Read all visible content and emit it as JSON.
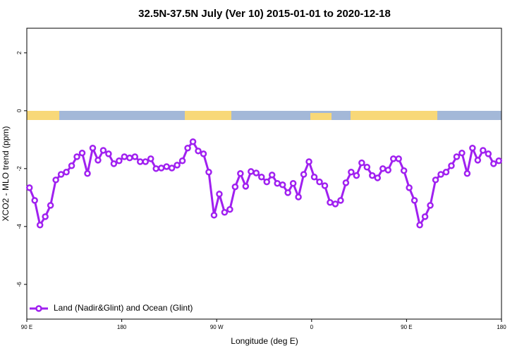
{
  "chart_data": {
    "type": "line",
    "title": "32.5N-37.5N July (Ver 10)   2015-01-01 to 2020-12-18",
    "xlabel": "Longitude (deg E)",
    "ylabel": "XCO2 - MLO trend (ppm)",
    "xlim": [
      90,
      540
    ],
    "ylim": [
      -7.2,
      2.85
    ],
    "xticks": [
      {
        "value": 90,
        "label": "90 E"
      },
      {
        "value": 180,
        "label": "180"
      },
      {
        "value": 270,
        "label": "90 W"
      },
      {
        "value": 360,
        "label": "0"
      },
      {
        "value": 450,
        "label": "90 E"
      },
      {
        "value": 540,
        "label": "180"
      }
    ],
    "yticks": [
      -6,
      -4,
      -2,
      0,
      2
    ],
    "legend": "bottom-left",
    "x": [
      92.5,
      97.5,
      102.5,
      107.5,
      112.5,
      117.5,
      122.5,
      127.5,
      132.5,
      137.5,
      142.5,
      147.5,
      152.5,
      157.5,
      162.5,
      167.5,
      172.5,
      177.5,
      182.5,
      187.5,
      192.5,
      197.5,
      202.5,
      207.5,
      212.5,
      217.5,
      222.5,
      227.5,
      232.5,
      237.5,
      242.5,
      247.5,
      252.5,
      257.5,
      262.5,
      267.5,
      272.5,
      277.5,
      282.5,
      287.5,
      292.5,
      297.5,
      302.5,
      307.5,
      312.5,
      317.5,
      322.5,
      327.5,
      332.5,
      337.5,
      342.5,
      347.5,
      352.5,
      357.5,
      362.5,
      367.5,
      372.5,
      377.5,
      382.5,
      387.5,
      392.5,
      397.5,
      402.5,
      407.5,
      412.5,
      417.5,
      422.5,
      427.5,
      432.5,
      437.5,
      442.5,
      447.5,
      452.5,
      457.5,
      462.5,
      467.5,
      472.5,
      477.5,
      482.5,
      487.5,
      492.5,
      497.5,
      502.5,
      507.5,
      512.5,
      517.5,
      522.5,
      527.5,
      532.5,
      537.5
    ],
    "series": [
      {
        "name": "Land (Nadir&Glint) and Ocean (Glint)",
        "color": "#a020f0",
        "values": [
          -2.66,
          -3.1,
          -3.95,
          -3.66,
          -3.27,
          -2.39,
          -2.2,
          -2.12,
          -1.9,
          -1.59,
          -1.46,
          -2.17,
          -1.29,
          -1.71,
          -1.37,
          -1.49,
          -1.83,
          -1.73,
          -1.59,
          -1.63,
          -1.59,
          -1.76,
          -1.76,
          -1.66,
          -2.0,
          -1.98,
          -1.93,
          -1.98,
          -1.88,
          -1.73,
          -1.29,
          -1.07,
          -1.39,
          -1.49,
          -2.12,
          -3.61,
          -2.88,
          -3.51,
          -3.41,
          -2.63,
          -2.17,
          -2.61,
          -2.1,
          -2.15,
          -2.29,
          -2.46,
          -2.22,
          -2.51,
          -2.56,
          -2.83,
          -2.51,
          -2.98,
          -2.2,
          -1.76,
          -2.29,
          -2.46,
          -2.59,
          -3.17,
          -3.22,
          -3.1,
          -2.49,
          -2.12,
          -2.24,
          -1.8,
          -1.95,
          -2.24,
          -2.32,
          -2.0,
          -2.05,
          -1.66,
          -1.66,
          -2.07,
          -2.66,
          -3.1,
          -3.95,
          -3.66,
          -3.27,
          -2.39,
          -2.2,
          -2.12,
          -1.9,
          -1.59,
          -1.46,
          -2.17,
          -1.29,
          -1.71,
          -1.37,
          -1.49,
          -1.83,
          -1.73
        ]
      }
    ]
  }
}
